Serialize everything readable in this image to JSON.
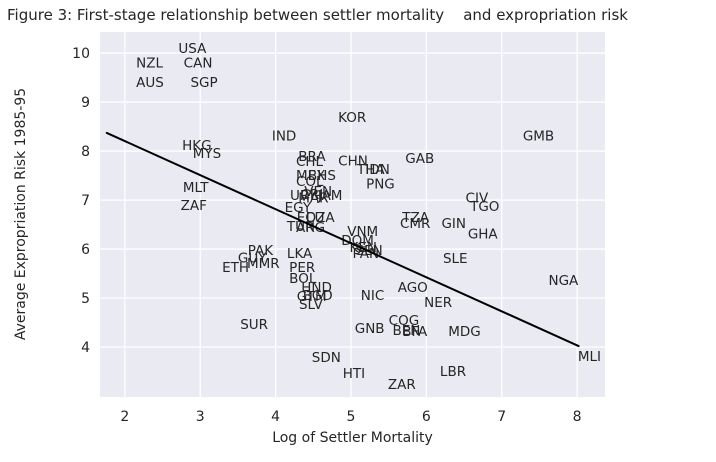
{
  "chart_data": {
    "type": "scatter",
    "title": "Figure 3: First-stage relationship between settler mortality    and expropriation risk",
    "xlabel": "Log of Settler Mortality",
    "ylabel": "Average Expropriation Risk 1985-95",
    "xlim": [
      1.67,
      8.37
    ],
    "ylim": [
      2.98,
      10.43
    ],
    "xticks": [
      2,
      3,
      4,
      5,
      6,
      7,
      8
    ],
    "yticks": [
      4,
      5,
      6,
      7,
      8,
      9,
      10
    ],
    "grid": true,
    "legend": false,
    "marker": "country-code-label",
    "colors": {
      "background": "#eaeaf2",
      "grid": "#ffffff",
      "text": "#262626",
      "line": "#000000"
    },
    "regression_line": {
      "x1": 1.76,
      "y1": 8.37,
      "x2": 8.02,
      "y2": 4.02
    },
    "points": [
      {
        "label": "USA",
        "x": 2.71,
        "y": 10.0
      },
      {
        "label": "NZL",
        "x": 2.15,
        "y": 9.71
      },
      {
        "label": "CAN",
        "x": 2.78,
        "y": 9.71
      },
      {
        "label": "AUS",
        "x": 2.15,
        "y": 9.31
      },
      {
        "label": "SGP",
        "x": 2.87,
        "y": 9.31
      },
      {
        "label": "KOR",
        "x": 4.83,
        "y": 8.59
      },
      {
        "label": "GMB",
        "x": 7.28,
        "y": 8.22
      },
      {
        "label": "IND",
        "x": 3.95,
        "y": 8.22
      },
      {
        "label": "HKG",
        "x": 2.76,
        "y": 8.02
      },
      {
        "label": "MYS",
        "x": 2.9,
        "y": 7.86
      },
      {
        "label": "BRA",
        "x": 4.3,
        "y": 7.8
      },
      {
        "label": "CHL",
        "x": 4.27,
        "y": 7.69
      },
      {
        "label": "CHN",
        "x": 4.83,
        "y": 7.71
      },
      {
        "label": "GAB",
        "x": 5.72,
        "y": 7.76
      },
      {
        "label": "THA",
        "x": 5.08,
        "y": 7.53
      },
      {
        "label": "IDN",
        "x": 5.19,
        "y": 7.53
      },
      {
        "label": "MEX",
        "x": 4.27,
        "y": 7.41
      },
      {
        "label": "BHS",
        "x": 4.43,
        "y": 7.41
      },
      {
        "label": "COL",
        "x": 4.27,
        "y": 7.29
      },
      {
        "label": "PNG",
        "x": 5.2,
        "y": 7.24
      },
      {
        "label": "MLT",
        "x": 2.77,
        "y": 7.16
      },
      {
        "label": "JAM",
        "x": 4.56,
        "y": 7.0
      },
      {
        "label": "URY",
        "x": 4.19,
        "y": 7.0
      },
      {
        "label": "CRI",
        "x": 4.33,
        "y": 7.02
      },
      {
        "label": "VEN",
        "x": 4.38,
        "y": 7.08
      },
      {
        "label": "MAR",
        "x": 4.3,
        "y": 6.95
      },
      {
        "label": "ZAF",
        "x": 2.74,
        "y": 6.8
      },
      {
        "label": "EGY",
        "x": 4.12,
        "y": 6.76
      },
      {
        "label": "ECU",
        "x": 4.28,
        "y": 6.55
      },
      {
        "label": "DZA",
        "x": 4.4,
        "y": 6.55
      },
      {
        "label": "TUN",
        "x": 4.15,
        "y": 6.37
      },
      {
        "label": "ARG",
        "x": 4.27,
        "y": 6.35
      },
      {
        "label": "TZA",
        "x": 5.68,
        "y": 6.55
      },
      {
        "label": "CMR",
        "x": 5.65,
        "y": 6.43
      },
      {
        "label": "GIN",
        "x": 6.2,
        "y": 6.43
      },
      {
        "label": "CIV",
        "x": 6.52,
        "y": 6.95
      },
      {
        "label": "TGO",
        "x": 6.58,
        "y": 6.78
      },
      {
        "label": "GHA",
        "x": 6.55,
        "y": 6.22
      },
      {
        "label": "VNM",
        "x": 4.95,
        "y": 6.27
      },
      {
        "label": "DOM",
        "x": 4.87,
        "y": 6.08
      },
      {
        "label": "KEN",
        "x": 4.98,
        "y": 5.94
      },
      {
        "label": "SEN",
        "x": 5.06,
        "y": 5.88
      },
      {
        "label": "PAN",
        "x": 5.02,
        "y": 5.82
      },
      {
        "label": "SLE",
        "x": 6.22,
        "y": 5.71
      },
      {
        "label": "PAK",
        "x": 3.63,
        "y": 5.88
      },
      {
        "label": "LKA",
        "x": 4.15,
        "y": 5.82
      },
      {
        "label": "GUY",
        "x": 3.5,
        "y": 5.73
      },
      {
        "label": "MMR",
        "x": 3.62,
        "y": 5.61
      },
      {
        "label": "ETH",
        "x": 3.29,
        "y": 5.53
      },
      {
        "label": "PER",
        "x": 4.18,
        "y": 5.53
      },
      {
        "label": "NGA",
        "x": 7.62,
        "y": 5.27
      },
      {
        "label": "BOL",
        "x": 4.18,
        "y": 5.31
      },
      {
        "label": "HND",
        "x": 4.34,
        "y": 5.12
      },
      {
        "label": "AGO",
        "x": 5.62,
        "y": 5.12
      },
      {
        "label": "NIC",
        "x": 5.13,
        "y": 4.96
      },
      {
        "label": "GTM",
        "x": 4.28,
        "y": 4.94
      },
      {
        "label": "BGD",
        "x": 4.36,
        "y": 4.96
      },
      {
        "label": "NER",
        "x": 5.97,
        "y": 4.82
      },
      {
        "label": "SLV",
        "x": 4.31,
        "y": 4.78
      },
      {
        "label": "COG",
        "x": 5.5,
        "y": 4.45
      },
      {
        "label": "SUR",
        "x": 3.53,
        "y": 4.37
      },
      {
        "label": "GNB",
        "x": 5.05,
        "y": 4.29
      },
      {
        "label": "BEN",
        "x": 5.55,
        "y": 4.25
      },
      {
        "label": "BFA",
        "x": 5.68,
        "y": 4.22
      },
      {
        "label": "MDG",
        "x": 6.29,
        "y": 4.22
      },
      {
        "label": "MLI",
        "x": 8.01,
        "y": 3.71
      },
      {
        "label": "SDN",
        "x": 4.48,
        "y": 3.69
      },
      {
        "label": "LBR",
        "x": 6.18,
        "y": 3.41
      },
      {
        "label": "HTI",
        "x": 4.89,
        "y": 3.37
      },
      {
        "label": "ZAR",
        "x": 5.49,
        "y": 3.14
      }
    ]
  }
}
